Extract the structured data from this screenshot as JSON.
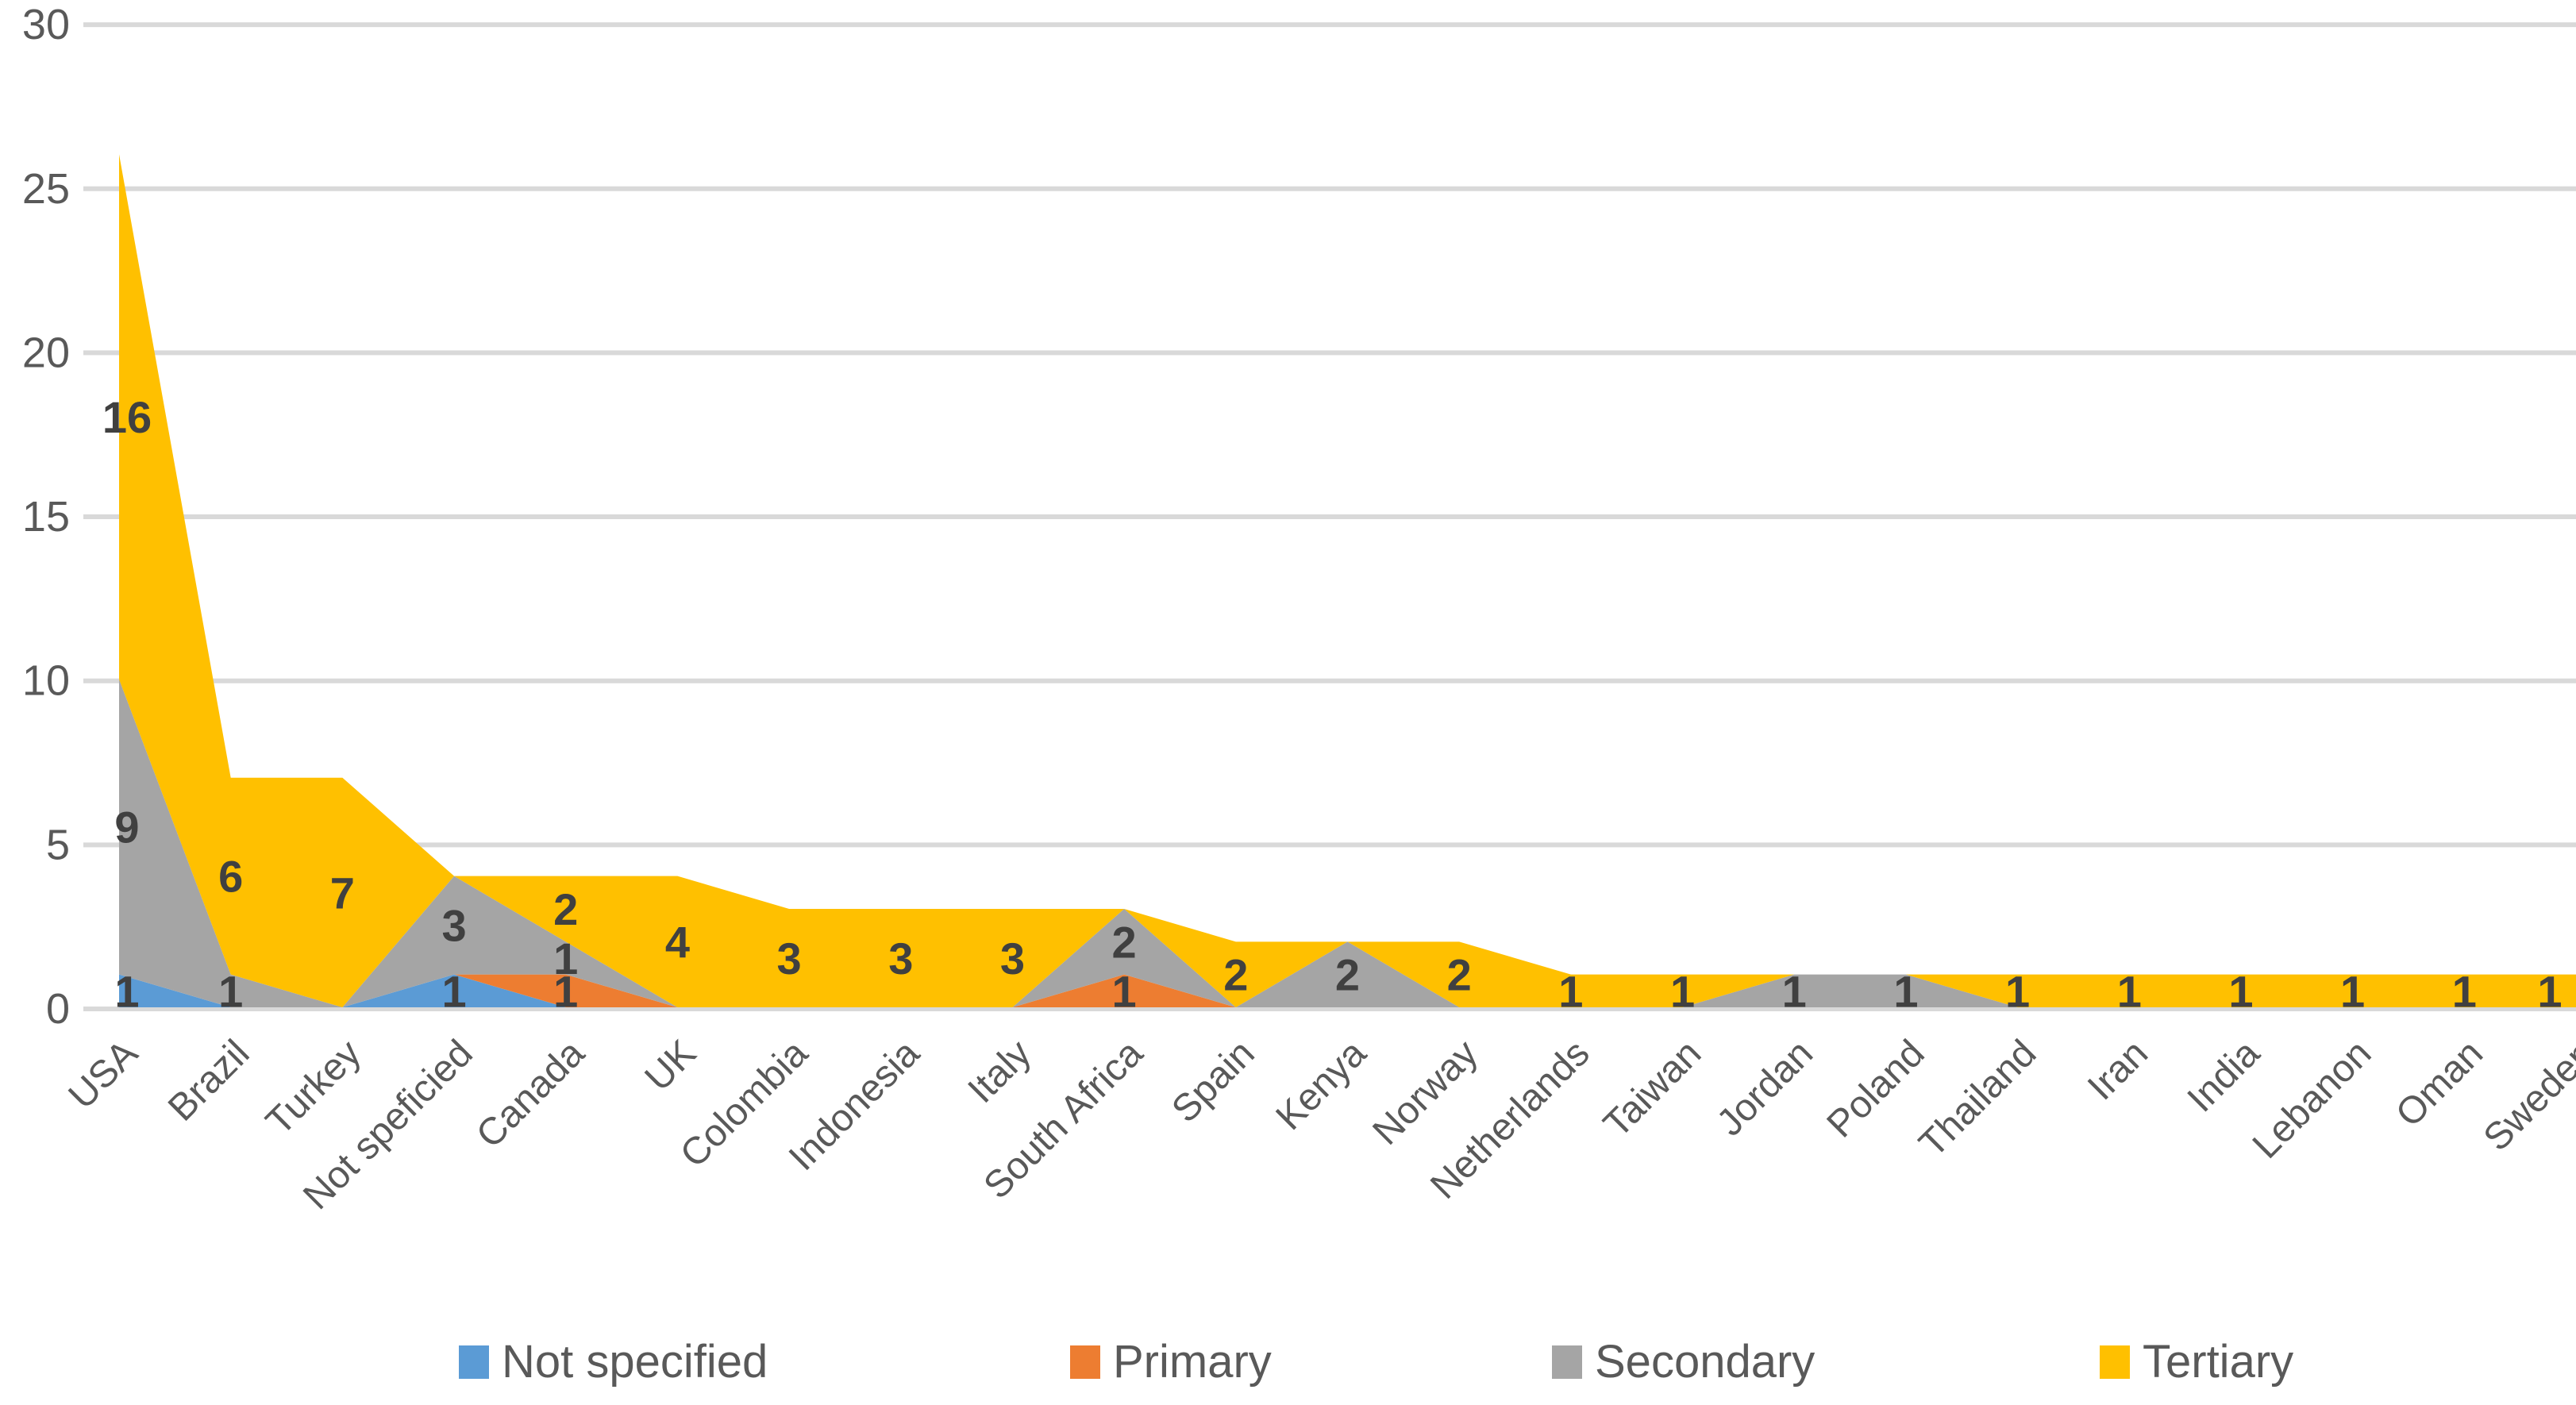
{
  "chart_data": {
    "type": "area",
    "stacked": true,
    "title": "",
    "xlabel": "",
    "ylabel": "",
    "categories": [
      "USA",
      "Brazil",
      "Turkey",
      "Not speficied",
      "Canada",
      "UK",
      "Colombia",
      "Indonesia",
      "Italy",
      "South Africa",
      "Spain",
      "Kenya",
      "Norway",
      "Netherlands",
      "Taiwan",
      "Jordan",
      "Poland",
      "Thailand",
      "Iran",
      "India",
      "Lebanon",
      "Oman",
      "Sweden"
    ],
    "series": [
      {
        "name": "Not specified",
        "color": "#5B9BD5",
        "values": [
          1,
          0,
          0,
          1,
          0,
          0,
          0,
          0,
          0,
          0,
          0,
          0,
          0,
          0,
          0,
          0,
          0,
          0,
          0,
          0,
          0,
          0,
          0
        ]
      },
      {
        "name": "Primary",
        "color": "#ED7D31",
        "values": [
          0,
          0,
          0,
          0,
          1,
          0,
          0,
          0,
          0,
          1,
          0,
          0,
          0,
          0,
          0,
          0,
          0,
          0,
          0,
          0,
          0,
          0,
          0
        ]
      },
      {
        "name": "Secondary",
        "color": "#A5A5A5",
        "values": [
          9,
          1,
          0,
          3,
          1,
          0,
          0,
          0,
          0,
          2,
          0,
          2,
          0,
          0,
          0,
          1,
          1,
          0,
          0,
          0,
          0,
          0,
          0
        ]
      },
      {
        "name": "Tertiary",
        "color": "#FFC000",
        "values": [
          16,
          6,
          7,
          0,
          2,
          4,
          3,
          3,
          3,
          0,
          2,
          0,
          2,
          1,
          1,
          0,
          0,
          1,
          1,
          1,
          1,
          1,
          1
        ]
      }
    ],
    "stacked_totals": [
      26,
      7,
      7,
      4,
      4,
      4,
      3,
      3,
      3,
      3,
      2,
      2,
      2,
      1,
      1,
      1,
      1,
      1,
      1,
      1,
      1,
      1,
      1
    ],
    "ylim": [
      0,
      30
    ],
    "yticks": [
      0,
      5,
      10,
      15,
      20,
      25,
      30
    ],
    "grid": true,
    "legend_position": "bottom",
    "data_labels": "non-zero values labeled at band centers; blank cells unlabeled",
    "gridline_color": "#D9D9D9",
    "axis_text_color": "#595959",
    "data_label_color": "#404040"
  },
  "legend": {
    "items": [
      {
        "label": "Not specified",
        "color": "#5B9BD5"
      },
      {
        "label": "Primary",
        "color": "#ED7D31"
      },
      {
        "label": "Secondary",
        "color": "#A5A5A5"
      },
      {
        "label": "Tertiary",
        "color": "#FFC000"
      }
    ]
  }
}
